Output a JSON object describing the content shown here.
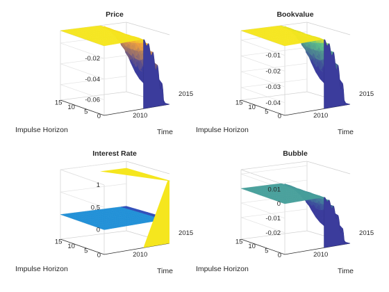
{
  "figure": {
    "background": "#ffffff"
  },
  "chart_data": [
    {
      "type": "surface",
      "title": "Price",
      "xlabel": "Time",
      "ylabel": "Impulse Horizon",
      "time_ticks": [
        "2010",
        "2015"
      ],
      "horizon_ticks": [
        "0",
        "5",
        "10",
        "15"
      ],
      "z_ticks": [
        {
          "value": -0.02,
          "label": "-0.02"
        },
        {
          "value": -0.04,
          "label": "-0.04"
        },
        {
          "value": -0.06,
          "label": "-0.06"
        }
      ],
      "zlim": [
        -0.075,
        -0.008
      ],
      "surface": {
        "plateau": -0.008,
        "trough": -0.075
      },
      "colors": {
        "high": "#f5e61e",
        "mid": "#f2a23c",
        "low": "#3b3c9c"
      }
    },
    {
      "type": "surface",
      "title": "Bookvalue",
      "xlabel": "Time",
      "ylabel": "Impulse Horizon",
      "time_ticks": [
        "2010",
        "2015"
      ],
      "horizon_ticks": [
        "0",
        "5",
        "10",
        "15"
      ],
      "z_ticks": [
        {
          "value": -0.01,
          "label": "-0.01"
        },
        {
          "value": -0.02,
          "label": "-0.02"
        },
        {
          "value": -0.03,
          "label": "-0.03"
        },
        {
          "value": -0.04,
          "label": "-0.04"
        }
      ],
      "zlim": [
        -0.048,
        -0.004
      ],
      "surface": {
        "plateau": -0.004,
        "trough": -0.048
      },
      "colors": {
        "high": "#f5e61e",
        "mid": "#5cc089",
        "low": "#3b3c9c"
      }
    },
    {
      "type": "surface",
      "title": "Interest Rate",
      "xlabel": "Time",
      "ylabel": "Impulse Horizon",
      "time_ticks": [
        "2010",
        "2015"
      ],
      "horizon_ticks": [
        "0",
        "5",
        "10",
        "15"
      ],
      "z_ticks": [
        {
          "value": 1,
          "label": "1"
        },
        {
          "value": 0.5,
          "label": "0.5"
        },
        {
          "value": 0,
          "label": "0"
        }
      ],
      "zlim": [
        -0.55,
        1.0
      ],
      "surface": {
        "plateau": 0.0,
        "front_peak": 0.85
      },
      "colors": {
        "high": "#f5e61e",
        "mid": "#1f8fd6",
        "low": "#2d4bb8"
      }
    },
    {
      "type": "surface",
      "title": "Bubble",
      "xlabel": "Time",
      "ylabel": "Impulse Horizon",
      "time_ticks": [
        "2010",
        "2015"
      ],
      "horizon_ticks": [
        "0",
        "5",
        "10",
        "15"
      ],
      "z_ticks": [
        {
          "value": 0.01,
          "label": "0.01"
        },
        {
          "value": 0,
          "label": "0"
        },
        {
          "value": -0.01,
          "label": "-0.01"
        },
        {
          "value": -0.02,
          "label": "-0.02"
        }
      ],
      "zlim": [
        -0.035,
        0.013
      ],
      "surface": {
        "plateau": 0.0,
        "trough": -0.035
      },
      "colors": {
        "high": "#e9e05a",
        "mid": "#4cc39a",
        "low": "#3b3c9c"
      }
    }
  ]
}
